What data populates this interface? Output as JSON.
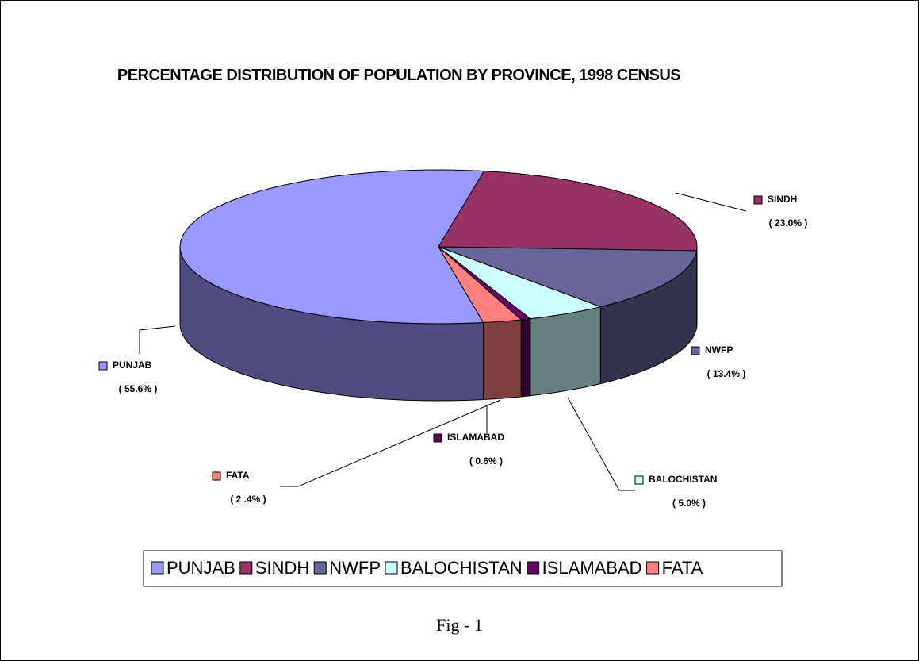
{
  "chart_data": {
    "type": "pie",
    "title": "PERCENTAGE DISTRIBUTION OF POPULATION BY PROVINCE, 1998 CENSUS",
    "categories": [
      "PUNJAB",
      "SINDH",
      "NWFP",
      "BALOCHISTAN",
      "ISLAMABAD",
      "FATA"
    ],
    "values": [
      55.6,
      23.0,
      13.4,
      5.0,
      0.6,
      2.4
    ],
    "value_labels": [
      "( 55.6% )",
      "( 23.0% )",
      "( 13.4% )",
      "( 5.0% )",
      "( 0.6% )",
      "( 2 .4% )"
    ],
    "colors": [
      "#9999ff",
      "#993366",
      "#666699",
      "#ccffff",
      "#660066",
      "#ff8080"
    ],
    "legend": "bottom"
  },
  "caption": "Fig - 1"
}
